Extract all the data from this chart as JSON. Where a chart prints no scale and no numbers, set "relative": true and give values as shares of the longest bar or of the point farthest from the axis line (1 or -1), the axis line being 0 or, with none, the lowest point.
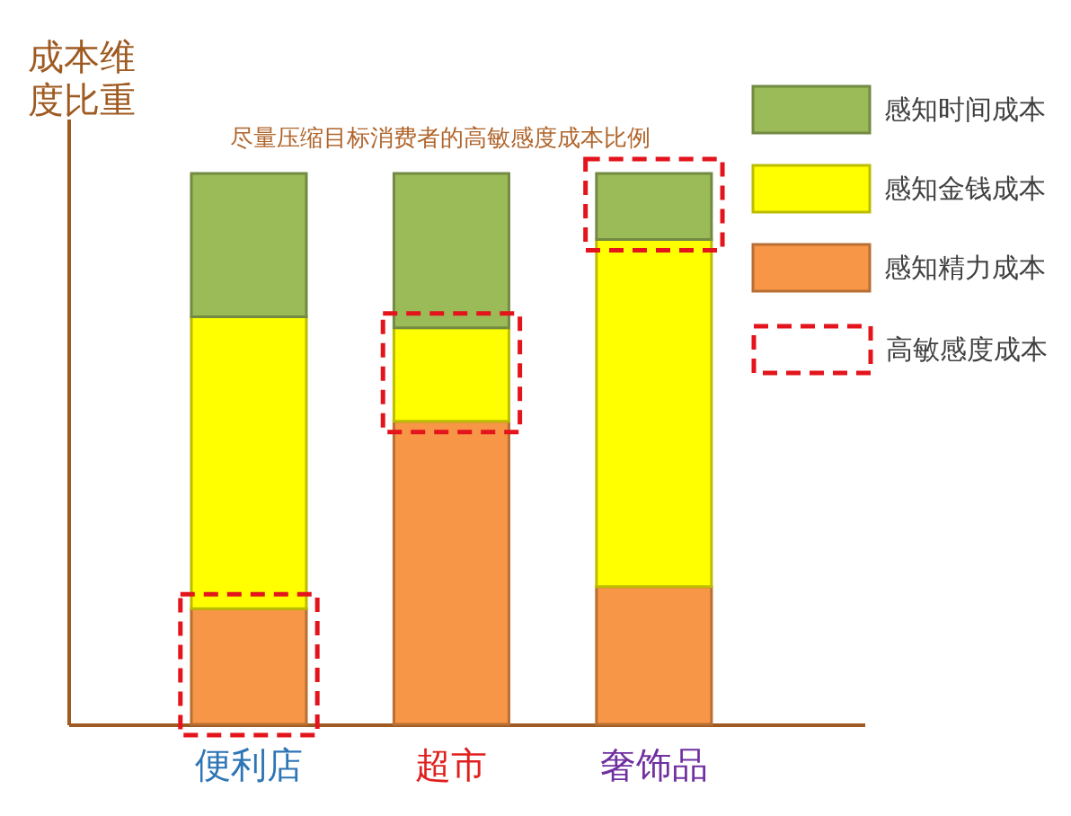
{
  "chart_data": {
    "type": "bar",
    "title": "尽量压缩目标消费者的高敏感度成本比例",
    "ylabel": "成本维度比重",
    "categories": [
      "便利店",
      "超市",
      "奢饰品"
    ],
    "stacked": true,
    "relative": true,
    "series": [
      {
        "name": "感知精力成本",
        "color": "#f79646",
        "values": [
          0.21,
          0.55,
          0.25
        ]
      },
      {
        "name": "感知金钱成本",
        "color": "#ffff00",
        "values": [
          0.53,
          0.17,
          0.63
        ]
      },
      {
        "name": "感知时间成本",
        "color": "#9bbb59",
        "values": [
          0.26,
          0.28,
          0.12
        ]
      }
    ],
    "legend": "top right",
    "annotations": [
      "高敏感度成本"
    ]
  }
}
